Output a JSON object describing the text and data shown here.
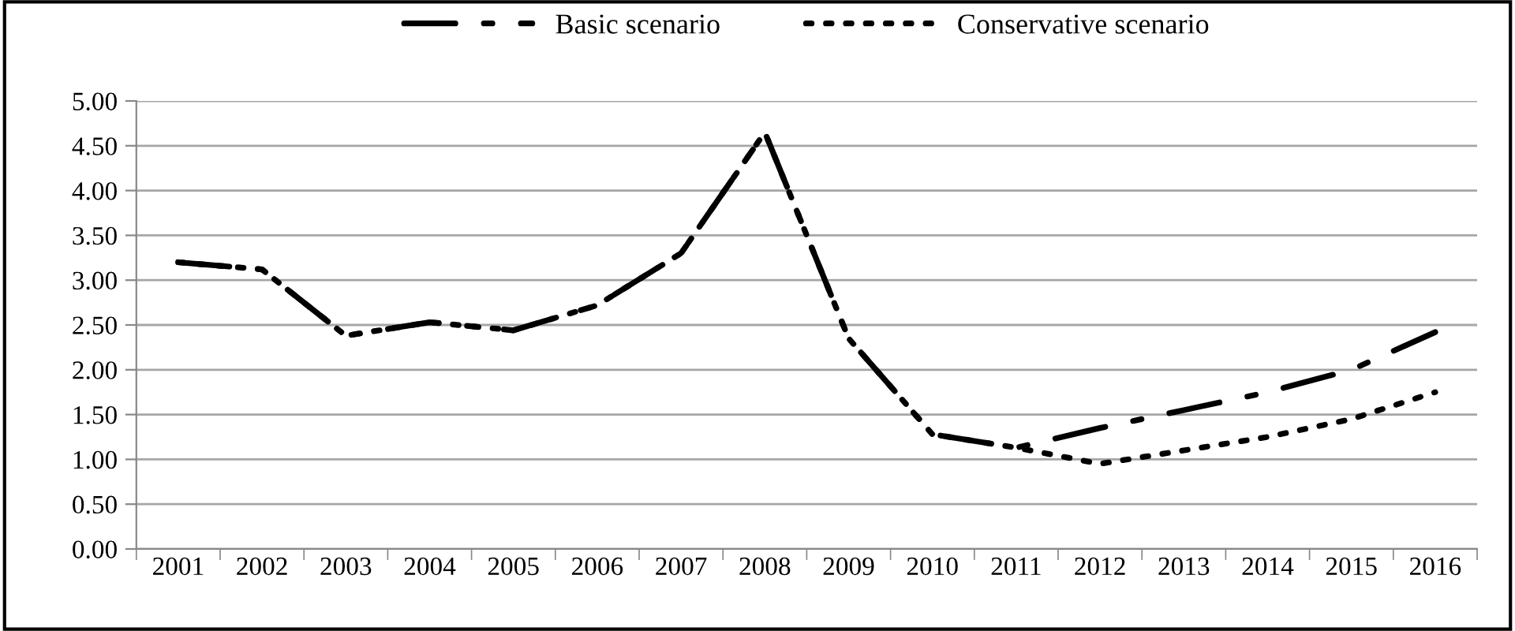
{
  "chart_data": {
    "type": "line",
    "categories": [
      "2001",
      "2002",
      "2003",
      "2004",
      "2005",
      "2006",
      "2007",
      "2008",
      "2009",
      "2010",
      "2011",
      "2012",
      "2013",
      "2014",
      "2015",
      "2016"
    ],
    "series": [
      {
        "name": "Basic scenario",
        "color": "#000000",
        "line_style": "dashdot",
        "values": [
          3.2,
          3.12,
          2.38,
          2.53,
          2.44,
          2.72,
          3.3,
          4.65,
          2.35,
          1.28,
          1.13,
          1.35,
          1.55,
          1.75,
          2.0,
          2.42
        ]
      },
      {
        "name": "Conservative scenario",
        "color": "#000000",
        "line_style": "dotted",
        "values": [
          3.2,
          3.12,
          2.38,
          2.53,
          2.44,
          2.72,
          3.3,
          4.65,
          2.35,
          1.28,
          1.13,
          0.95,
          1.1,
          1.25,
          1.45,
          1.75
        ]
      }
    ],
    "ylim": [
      0,
      5
    ],
    "yticks": [
      {
        "value": 0,
        "label": "0.00"
      },
      {
        "value": 0.5,
        "label": "0.50"
      },
      {
        "value": 1,
        "label": "1.00"
      },
      {
        "value": 1.5,
        "label": "1.50"
      },
      {
        "value": 2,
        "label": "2.00"
      },
      {
        "value": 2.5,
        "label": "2.50"
      },
      {
        "value": 3,
        "label": "3.00"
      },
      {
        "value": 3.5,
        "label": "3.50"
      },
      {
        "value": 4,
        "label": "4.00"
      },
      {
        "value": 4.5,
        "label": "4.50"
      },
      {
        "value": 5,
        "label": "5.00"
      }
    ],
    "grid": "y",
    "legend": "top"
  }
}
